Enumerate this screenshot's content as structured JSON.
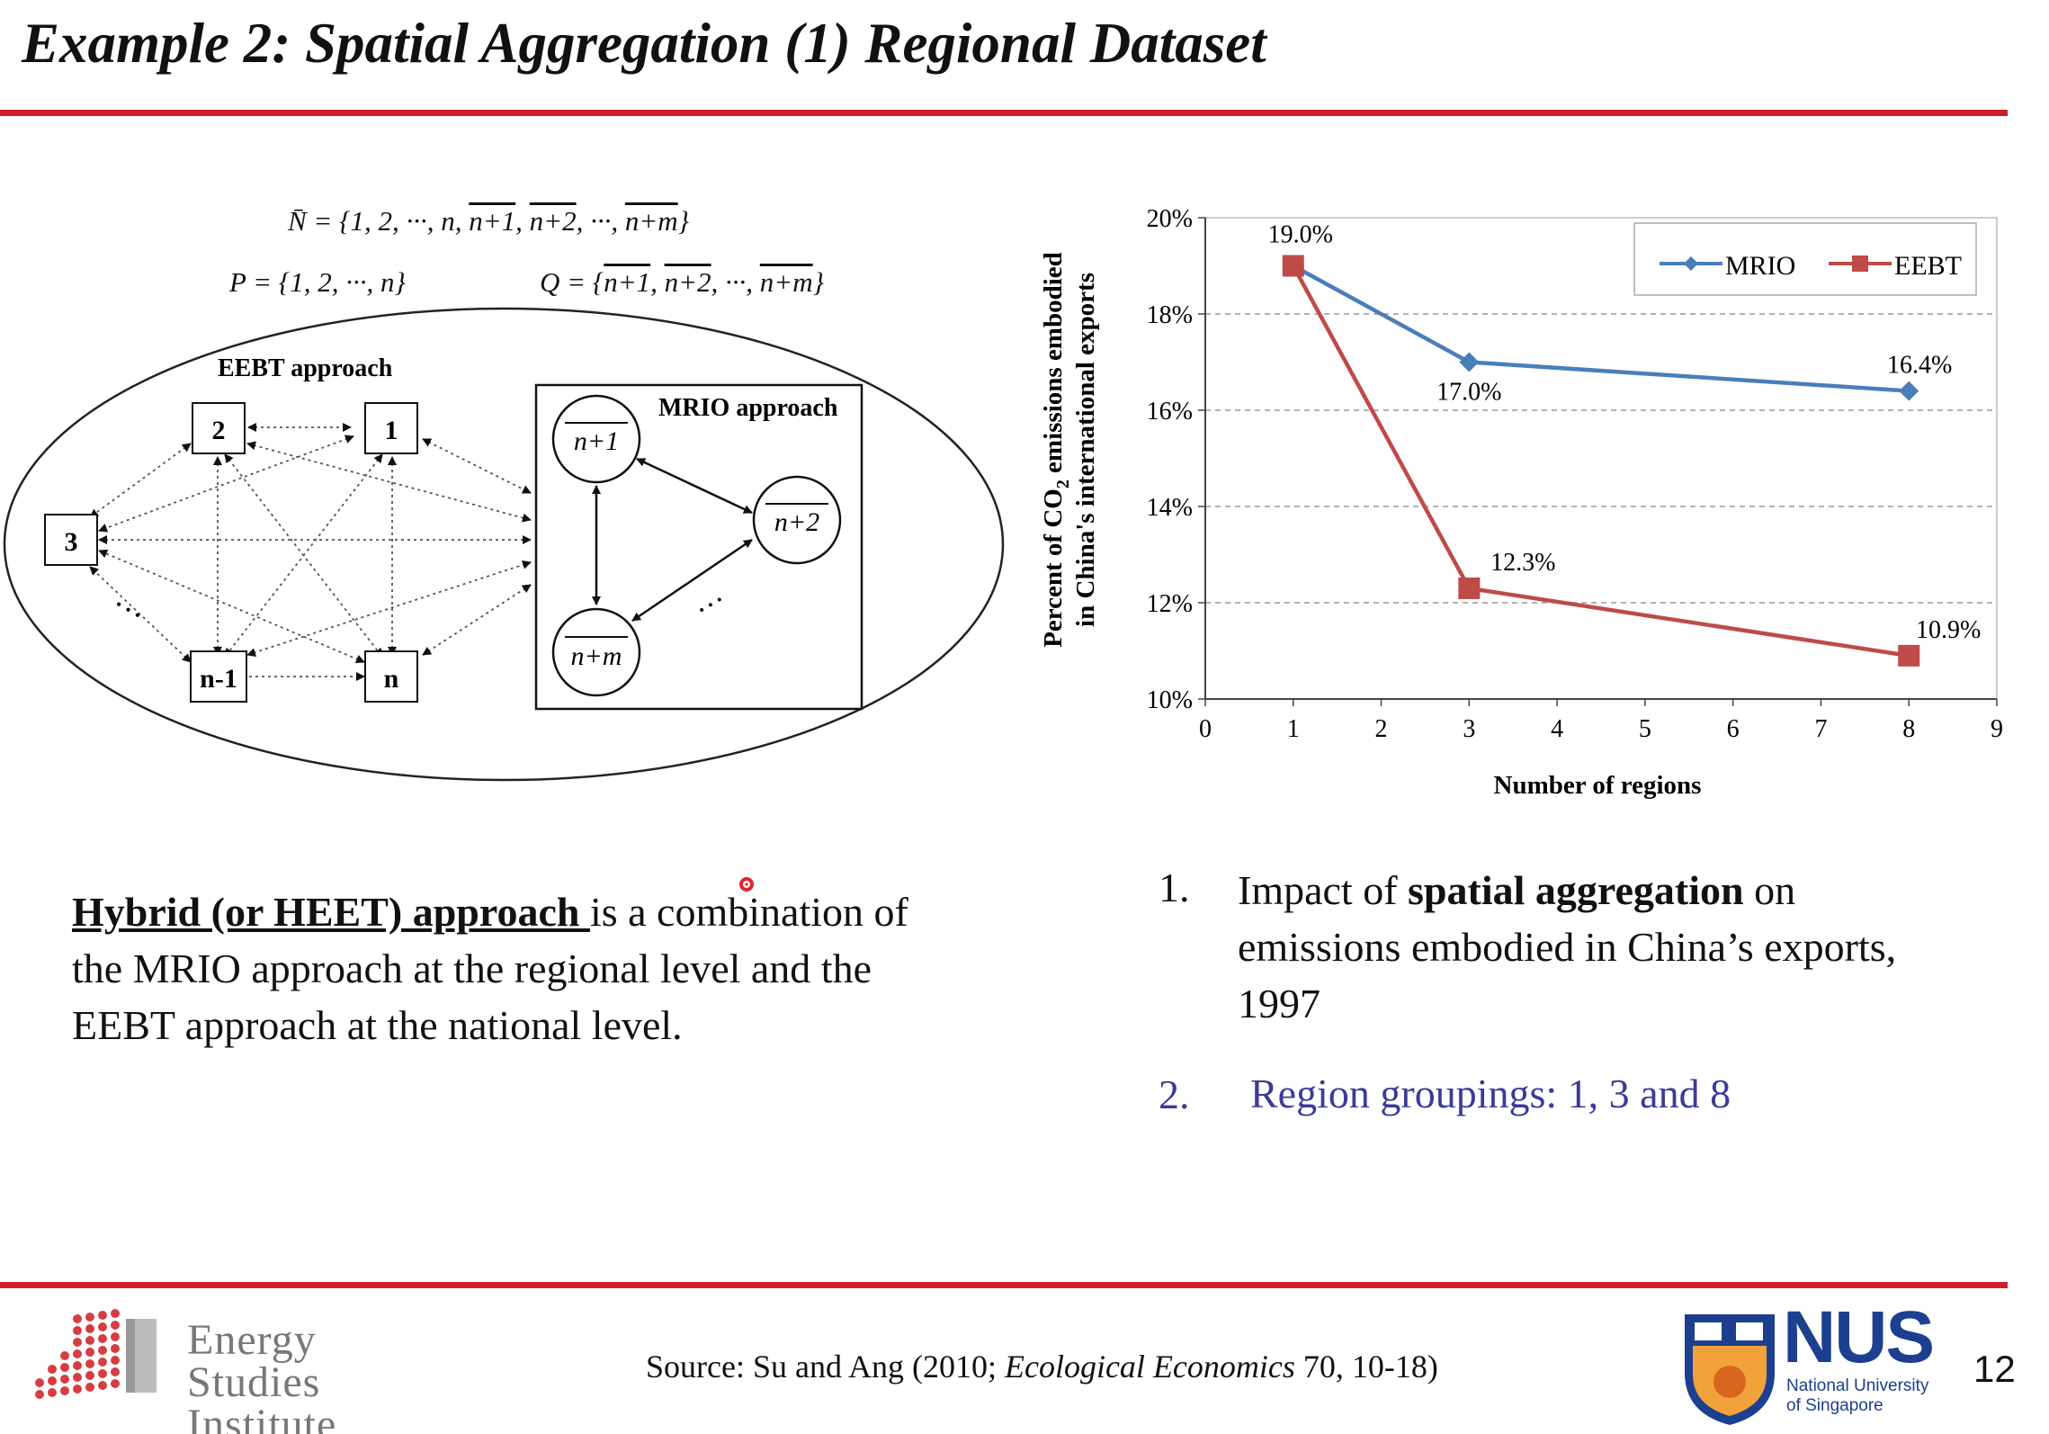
{
  "slide": {
    "title": "Example 2: Spatial Aggregation (1) Regional Dataset",
    "page_number": "12",
    "accent_color": "#cc1f2b"
  },
  "diagram": {
    "eq_n_prefix": "N̄ = {1, 2, ···, n, ",
    "eq_n_over1": "n+1",
    "eq_n_over2": "n+2",
    "eq_n_mid": ", ···, ",
    "eq_n_over3": "n+m",
    "eq_n_close": "}",
    "eq_p": "P = {1, 2, ···, n}",
    "eq_q_prefix": "Q = {",
    "eq_q_over1": "n+1",
    "eq_q_over2": "n+2",
    "eq_q_mid": ", ···, ",
    "eq_q_over3": "n+m",
    "eq_q_close": "}",
    "eebt_label": "EEBT approach",
    "mrio_label": "MRIO approach",
    "nodes": {
      "n1": "1",
      "n2": "2",
      "n3": "3",
      "nm1": "n-1",
      "nn": "n",
      "c1": "n+1",
      "c2": "n+2",
      "c3": "n+m"
    },
    "dots": "···"
  },
  "chart": {
    "chart_data": {
      "type": "line",
      "xlabel": "Number of regions",
      "ylabel_line1": "Percent of CO2 emissions embodied",
      "ylabel_line2": "in China's international exports",
      "xlim": [
        0,
        9
      ],
      "ylim": [
        10,
        20
      ],
      "x_ticks": [
        "0",
        "1",
        "2",
        "3",
        "4",
        "5",
        "6",
        "7",
        "8",
        "9"
      ],
      "y_ticks": [
        "10%",
        "12%",
        "14%",
        "16%",
        "18%",
        "20%"
      ],
      "grid": "horizontal dashed",
      "legend_position": "top-right",
      "series": [
        {
          "name": "MRIO",
          "color": "#4a7ebb",
          "marker": "diamond",
          "x": [
            1,
            3,
            8
          ],
          "y": [
            19.0,
            17.0,
            16.4
          ],
          "labels": [
            "",
            "17.0%",
            "16.4%"
          ]
        },
        {
          "name": "EEBT",
          "color": "#be4b48",
          "marker": "square",
          "x": [
            1,
            3,
            8
          ],
          "y": [
            19.0,
            12.3,
            10.9
          ],
          "labels": [
            "19.0%",
            "12.3%",
            "10.9%"
          ]
        }
      ]
    }
  },
  "left_text": {
    "term": "Hybrid (or HEET) approach ",
    "rest": "is a combination of the MRIO approach at the regional level and the EEBT approach at the national level."
  },
  "right_list": {
    "item1_num": "1.",
    "item1_pre": "Impact of ",
    "item1_bold": "spatial aggregation",
    "item1_post": " on emissions embodied in China’s exports, 1997",
    "item2_num": "2.",
    "item2_text": "Region groupings: 1, 3 and 8",
    "item2_color": "#3b3b9a"
  },
  "footer": {
    "source_pre": "Source: Su and Ang (2010; ",
    "source_italic": "Ecological Economics",
    "source_post": " 70, 10-18)",
    "esi_line1": "Energy",
    "esi_line2": "Studies",
    "esi_line3": "Institute",
    "nus_big": "NUS",
    "nus_line1": "National University",
    "nus_line2": "of Singapore"
  }
}
